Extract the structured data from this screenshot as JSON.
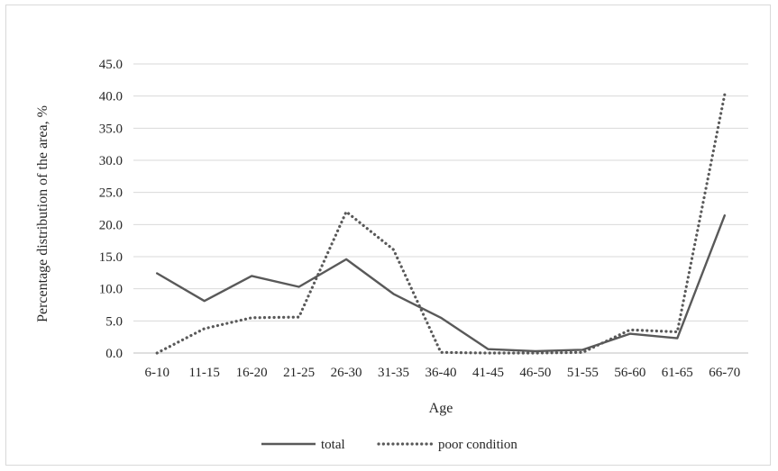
{
  "chart_data": {
    "type": "line",
    "title": "",
    "xlabel": "Age",
    "ylabel": "Percentage distribution of the area, %",
    "categories": [
      "6-10",
      "11-15",
      "16-20",
      "21-25",
      "26-30",
      "31-35",
      "36-40",
      "41-45",
      "46-50",
      "51-55",
      "56-60",
      "61-65",
      "66-70"
    ],
    "ylim": [
      0,
      45
    ],
    "yticks": [
      "0.0",
      "5.0",
      "10.0",
      "15.0",
      "20.0",
      "25.0",
      "30.0",
      "35.0",
      "40.0",
      "45.0"
    ],
    "grid": true,
    "legend_position": "bottom",
    "series": [
      {
        "name": "total",
        "style": "solid",
        "color": "#595959",
        "values": [
          12.4,
          8.1,
          12.0,
          10.3,
          14.6,
          9.2,
          5.5,
          0.6,
          0.3,
          0.5,
          3.0,
          2.3,
          21.4
        ]
      },
      {
        "name": "poor condition",
        "style": "dotted",
        "color": "#595959",
        "values": [
          0.0,
          3.8,
          5.5,
          5.6,
          22.0,
          16.1,
          0.1,
          0.0,
          0.0,
          0.1,
          3.6,
          3.3,
          40.2
        ]
      }
    ]
  }
}
